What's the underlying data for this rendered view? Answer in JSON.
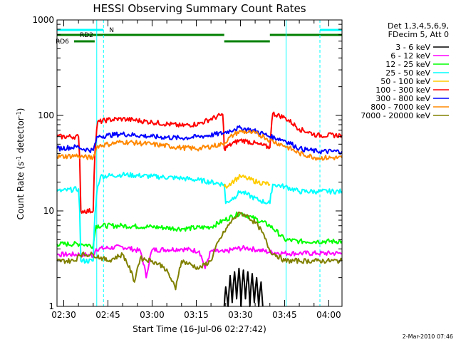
{
  "chart_data": {
    "type": "line",
    "title": "HESSI Observing Summary Count Rates",
    "xlabel": "Start Time (16-Jul-06 02:27:42)",
    "ylabel_main": "Count Rate (s",
    "ylabel_sup1": "-1",
    "ylabel_mid": " detector",
    "ylabel_sup2": "-1",
    "ylabel_end": ")",
    "y_scale": "log",
    "ylim": [
      1,
      1000
    ],
    "xlim_minutes": [
      -2.3,
      94.5
    ],
    "x_ticks": [
      {
        "label": "02:30",
        "min": 0
      },
      {
        "label": "02:45",
        "min": 15
      },
      {
        "label": "03:00",
        "min": 30
      },
      {
        "label": "03:15",
        "min": 45
      },
      {
        "label": "03:30",
        "min": 60
      },
      {
        "label": "03:45",
        "min": 75
      },
      {
        "label": "04:00",
        "min": 90
      }
    ],
    "y_ticks": [
      {
        "label": "1",
        "value": 1
      },
      {
        "label": "10",
        "value": 10
      },
      {
        "label": "100",
        "value": 100
      },
      {
        "label": "1000",
        "value": 1000
      }
    ],
    "legend_header": [
      "Det 1,3,4,5,6,9,",
      "FDecim 5, Att 0"
    ],
    "legend_position": "right",
    "timestamp": "2-Mar-2010 07:46",
    "flags": [
      {
        "label": "N",
        "color": "#00ffff",
        "segments": [
          [
            -2.3,
            13.5
          ],
          [
            87.0,
            94.5
          ]
        ]
      },
      {
        "label": "RD2",
        "color": "#008000",
        "segments": [
          [
            -2.3,
            54.5
          ],
          [
            70.0,
            94.5
          ]
        ]
      },
      {
        "label": "RD6",
        "color": "#008000",
        "segments": [
          [
            3.5,
            10.5
          ],
          [
            54.5,
            70.0
          ]
        ]
      }
    ],
    "series": [
      {
        "name": "3 - 6 keV",
        "color": "#000000",
        "points": [
          [
            54.5,
            1
          ],
          [
            55,
            1.6
          ],
          [
            55.8,
            1
          ],
          [
            56.5,
            2.1
          ],
          [
            57.2,
            1.1
          ],
          [
            58,
            2.3
          ],
          [
            58.7,
            1.2
          ],
          [
            59.5,
            2.5
          ],
          [
            60.2,
            1
          ],
          [
            61,
            2.4
          ],
          [
            61.7,
            1.2
          ],
          [
            62.5,
            2.3
          ],
          [
            63.2,
            1
          ],
          [
            64,
            2.2
          ],
          [
            64.7,
            1.1
          ],
          [
            65.5,
            2
          ],
          [
            66.2,
            1
          ],
          [
            67,
            1.8
          ],
          [
            67.6,
            1
          ]
        ]
      },
      {
        "name": "6 - 12 keV",
        "color": "#ff00ff",
        "points": [
          [
            -2.3,
            3.5
          ],
          [
            6,
            3.5
          ],
          [
            10,
            3.4
          ],
          [
            11,
            4
          ],
          [
            20,
            4.2
          ],
          [
            26,
            3.8
          ],
          [
            28,
            2
          ],
          [
            30,
            3.9
          ],
          [
            40,
            4
          ],
          [
            46,
            3.8
          ],
          [
            48,
            2.5
          ],
          [
            50,
            3.8
          ],
          [
            54.5,
            3.7
          ],
          [
            58,
            4
          ],
          [
            62,
            4.1
          ],
          [
            66,
            3.9
          ],
          [
            70,
            3.7
          ],
          [
            75,
            3.6
          ],
          [
            80,
            3.6
          ],
          [
            86,
            3.6
          ],
          [
            94.5,
            3.6
          ]
        ]
      },
      {
        "name": "12 - 25 keV",
        "color": "#00ff00",
        "points": [
          [
            -2.3,
            4.5
          ],
          [
            6,
            4.5
          ],
          [
            10,
            4.3
          ],
          [
            11,
            7
          ],
          [
            20,
            7
          ],
          [
            30,
            6.8
          ],
          [
            40,
            6.5
          ],
          [
            50,
            6.8
          ],
          [
            54.5,
            8
          ],
          [
            60,
            9.5
          ],
          [
            64,
            8.5
          ],
          [
            70,
            7
          ],
          [
            75,
            5
          ],
          [
            80,
            4.8
          ],
          [
            86,
            4.8
          ],
          [
            94.5,
            4.8
          ]
        ]
      },
      {
        "name": "25 - 50 keV",
        "color": "#00ffff",
        "points": [
          [
            -2.3,
            16
          ],
          [
            5,
            17
          ],
          [
            5.8,
            3
          ],
          [
            10,
            3
          ],
          [
            11.5,
            18
          ],
          [
            12.5,
            23
          ],
          [
            20,
            24
          ],
          [
            30,
            23
          ],
          [
            40,
            22
          ],
          [
            46,
            21
          ],
          [
            54.5,
            19
          ],
          [
            55,
            12
          ],
          [
            58,
            14
          ],
          [
            60,
            16
          ],
          [
            62,
            15
          ],
          [
            66,
            13
          ],
          [
            70,
            12
          ],
          [
            71,
            19
          ],
          [
            75,
            18
          ],
          [
            80,
            16
          ],
          [
            86,
            16
          ],
          [
            94.5,
            16
          ]
        ]
      },
      {
        "name": "50 - 100 keV",
        "color": "#ffcc00",
        "points": [
          [
            54.5,
            18
          ],
          [
            55,
            18
          ],
          [
            58,
            21
          ],
          [
            60,
            23
          ],
          [
            62,
            22
          ],
          [
            66,
            20
          ],
          [
            70,
            19
          ]
        ]
      },
      {
        "name": "100 - 300 keV",
        "color": "#ff0000",
        "points": [
          [
            -2.3,
            60
          ],
          [
            5,
            60
          ],
          [
            5.8,
            10
          ],
          [
            10,
            10
          ],
          [
            11.5,
            85
          ],
          [
            15,
            90
          ],
          [
            20,
            92
          ],
          [
            30,
            85
          ],
          [
            40,
            78
          ],
          [
            46,
            82
          ],
          [
            54,
            102
          ],
          [
            54.5,
            45
          ],
          [
            58,
            52
          ],
          [
            60,
            55
          ],
          [
            62,
            54
          ],
          [
            66,
            50
          ],
          [
            70,
            46
          ],
          [
            71,
            105
          ],
          [
            75,
            95
          ],
          [
            80,
            72
          ],
          [
            86,
            62
          ],
          [
            94.5,
            62
          ]
        ]
      },
      {
        "name": "300 - 800 keV",
        "color": "#0000ff",
        "points": [
          [
            -2.3,
            45
          ],
          [
            5,
            47
          ],
          [
            5.8,
            45
          ],
          [
            10,
            43
          ],
          [
            11.5,
            60
          ],
          [
            15,
            62
          ],
          [
            20,
            64
          ],
          [
            30,
            60
          ],
          [
            40,
            58
          ],
          [
            46,
            60
          ],
          [
            54,
            65
          ],
          [
            58,
            72
          ],
          [
            60,
            74
          ],
          [
            64,
            70
          ],
          [
            68,
            64
          ],
          [
            70,
            60
          ],
          [
            75,
            55
          ],
          [
            80,
            45
          ],
          [
            86,
            42
          ],
          [
            94.5,
            42
          ]
        ]
      },
      {
        "name": "800 - 7000 keV",
        "color": "#ff8800",
        "points": [
          [
            -2.3,
            37
          ],
          [
            5,
            38
          ],
          [
            5.8,
            37
          ],
          [
            10,
            36
          ],
          [
            11.5,
            48
          ],
          [
            15,
            50
          ],
          [
            20,
            53
          ],
          [
            30,
            50
          ],
          [
            40,
            46
          ],
          [
            46,
            45
          ],
          [
            54,
            50
          ],
          [
            58,
            64
          ],
          [
            60,
            68
          ],
          [
            64,
            66
          ],
          [
            68,
            60
          ],
          [
            70,
            55
          ],
          [
            75,
            48
          ],
          [
            80,
            40
          ],
          [
            86,
            36
          ],
          [
            94.5,
            36
          ]
        ]
      },
      {
        "name": "7000 - 20000 keV",
        "color": "#808000",
        "points": [
          [
            -2.3,
            3
          ],
          [
            4,
            3
          ],
          [
            5,
            3.5
          ],
          [
            10,
            3.5
          ],
          [
            15,
            3
          ],
          [
            20,
            3.5
          ],
          [
            24,
            1.8
          ],
          [
            26,
            3.2
          ],
          [
            30,
            3
          ],
          [
            34,
            2.6
          ],
          [
            38,
            1.5
          ],
          [
            40,
            3
          ],
          [
            46,
            2.5
          ],
          [
            50,
            3
          ],
          [
            54.5,
            6
          ],
          [
            58,
            8.5
          ],
          [
            60,
            9.5
          ],
          [
            62,
            9
          ],
          [
            66,
            7
          ],
          [
            70,
            3.8
          ],
          [
            75,
            3
          ],
          [
            80,
            3
          ],
          [
            86,
            3
          ],
          [
            94.5,
            3
          ]
        ]
      }
    ]
  }
}
